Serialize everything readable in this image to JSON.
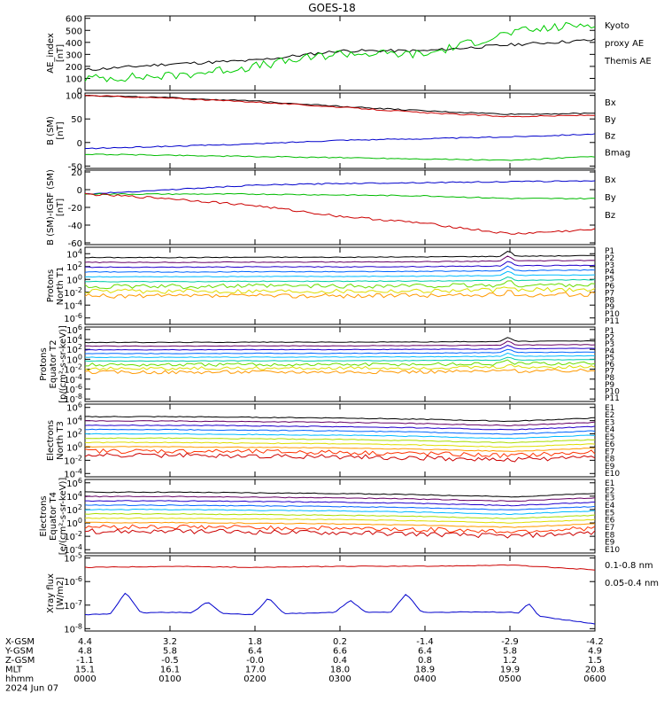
{
  "title": "GOES-18",
  "panels": [
    {
      "id": "ae",
      "ylabel": [
        "AE_index",
        "[nT]"
      ],
      "yticks": [
        {
          "v": 600,
          "label": "600"
        },
        {
          "v": 500,
          "label": "500"
        },
        {
          "v": 400,
          "label": "400"
        },
        {
          "v": 300,
          "label": "300"
        },
        {
          "v": 200,
          "label": "200"
        },
        {
          "v": 100,
          "label": "100"
        },
        {
          "v": 0,
          "label": "0"
        }
      ],
      "ylim": [
        0,
        620
      ],
      "legend": [
        {
          "text": "Kyoto",
          "color": "#00cc00"
        },
        {
          "text": "proxy AE",
          "color": "#00cc00"
        },
        {
          "text": "Themis AE",
          "color": "#000000"
        }
      ]
    },
    {
      "id": "b_sm",
      "ylabel": [
        "B (SM)",
        "[nT]"
      ],
      "yticks": [
        {
          "v": 100,
          "label": "100"
        },
        {
          "v": 50,
          "label": "50"
        },
        {
          "v": 0,
          "label": "0"
        },
        {
          "v": -50,
          "label": "-50"
        }
      ],
      "ylim": [
        -55,
        105
      ],
      "legend": [
        {
          "text": "Bx",
          "color": "#0000cc"
        },
        {
          "text": "By",
          "color": "#00bb00"
        },
        {
          "text": "Bz",
          "color": "#cc0000"
        },
        {
          "text": "Bmag",
          "color": "#000000"
        }
      ]
    },
    {
      "id": "b_igrf",
      "ylabel": [
        "B (SM)-IGRF (SM)",
        "[nT]"
      ],
      "yticks": [
        {
          "v": 20,
          "label": "20"
        },
        {
          "v": 0,
          "label": "0"
        },
        {
          "v": -20,
          "label": "-20"
        },
        {
          "v": -40,
          "label": "-40"
        },
        {
          "v": -60,
          "label": "-60"
        }
      ],
      "ylim": [
        -62,
        22
      ],
      "legend": [
        {
          "text": "Bx",
          "color": "#0000cc"
        },
        {
          "text": "By",
          "color": "#00bb00"
        },
        {
          "text": "Bz",
          "color": "#cc0000"
        }
      ]
    },
    {
      "id": "prot_n",
      "ylabel": [
        "Protons",
        "North T1"
      ],
      "yticks": [
        {
          "v": 4,
          "label": "10^4"
        },
        {
          "v": 2,
          "label": "10^2"
        },
        {
          "v": 0,
          "label": "10^0"
        },
        {
          "v": -2,
          "label": "10^-2"
        },
        {
          "v": -4,
          "label": "10^-4"
        },
        {
          "v": -6,
          "label": "10^-6"
        }
      ],
      "ylim": [
        -7,
        5
      ],
      "legend": [
        {
          "text": "P1",
          "color": "#000000"
        },
        {
          "text": "P2",
          "color": "#660066"
        },
        {
          "text": "P3",
          "color": "#2200cc"
        },
        {
          "text": "P4",
          "color": "#0066ff"
        },
        {
          "text": "P5",
          "color": "#00bbff"
        },
        {
          "text": "P6",
          "color": "#00ccaa"
        },
        {
          "text": "P7",
          "color": "#66dd00"
        },
        {
          "text": "P8",
          "color": "#dddd00"
        },
        {
          "text": "P9",
          "color": "#ff9900"
        },
        {
          "text": "P10",
          "color": "#ff3300"
        },
        {
          "text": "P11",
          "color": "#cc0000"
        }
      ]
    },
    {
      "id": "prot_e",
      "ylabel": [
        "Protons",
        "Equator T2",
        "[p/(cm²-s-sr-keV)]"
      ],
      "yticks": [
        {
          "v": 6,
          "label": "10^6"
        },
        {
          "v": 4,
          "label": "10^4"
        },
        {
          "v": 2,
          "label": "10^2"
        },
        {
          "v": 0,
          "label": "10^0"
        },
        {
          "v": -2,
          "label": "10^-2"
        },
        {
          "v": -4,
          "label": "10^-4"
        },
        {
          "v": -6,
          "label": "10^-6"
        },
        {
          "v": -8,
          "label": "10^-8"
        }
      ],
      "ylim": [
        -8.5,
        6.5
      ],
      "legend": [
        {
          "text": "P1",
          "color": "#000000"
        },
        {
          "text": "P2",
          "color": "#660066"
        },
        {
          "text": "P3",
          "color": "#2200cc"
        },
        {
          "text": "P4",
          "color": "#0066ff"
        },
        {
          "text": "P5",
          "color": "#00bbff"
        },
        {
          "text": "P6",
          "color": "#00ccaa"
        },
        {
          "text": "P7",
          "color": "#66dd00"
        },
        {
          "text": "P8",
          "color": "#dddd00"
        },
        {
          "text": "P9",
          "color": "#ff9900"
        },
        {
          "text": "P10",
          "color": "#ff3300"
        },
        {
          "text": "P11",
          "color": "#cc0000"
        }
      ]
    },
    {
      "id": "elec_n",
      "ylabel": [
        "Electrons",
        "North T3"
      ],
      "yticks": [
        {
          "v": 6,
          "label": "10^6"
        },
        {
          "v": 4,
          "label": "10^4"
        },
        {
          "v": 2,
          "label": "10^2"
        },
        {
          "v": 0,
          "label": "10^0"
        },
        {
          "v": -2,
          "label": "10^-2"
        },
        {
          "v": -4,
          "label": "10^-4"
        }
      ],
      "ylim": [
        -4.5,
        6.5
      ],
      "legend": [
        {
          "text": "E1",
          "color": "#000000"
        },
        {
          "text": "E2",
          "color": "#660066"
        },
        {
          "text": "E3",
          "color": "#2200cc"
        },
        {
          "text": "E4",
          "color": "#0066ff"
        },
        {
          "text": "E5",
          "color": "#00bbff"
        },
        {
          "text": "E6",
          "color": "#aadd00"
        },
        {
          "text": "E7",
          "color": "#dddd00"
        },
        {
          "text": "E8",
          "color": "#ff9900"
        },
        {
          "text": "E9",
          "color": "#ff3300"
        },
        {
          "text": "E10",
          "color": "#cc0000"
        }
      ]
    },
    {
      "id": "elec_e",
      "ylabel": [
        "Electrons",
        "Equator T4",
        "[e/(cm²-s-sr-keV)]"
      ],
      "yticks": [
        {
          "v": 6,
          "label": "10^6"
        },
        {
          "v": 4,
          "label": "10^4"
        },
        {
          "v": 2,
          "label": "10^2"
        },
        {
          "v": 0,
          "label": "10^0"
        },
        {
          "v": -2,
          "label": "10^-2"
        },
        {
          "v": -4,
          "label": "10^-4"
        }
      ],
      "ylim": [
        -4.5,
        6.5
      ],
      "legend": [
        {
          "text": "E1",
          "color": "#000000"
        },
        {
          "text": "E2",
          "color": "#660066"
        },
        {
          "text": "E3",
          "color": "#2200cc"
        },
        {
          "text": "E4",
          "color": "#0066ff"
        },
        {
          "text": "E5",
          "color": "#00bbff"
        },
        {
          "text": "E6",
          "color": "#aadd00"
        },
        {
          "text": "E7",
          "color": "#dddd00"
        },
        {
          "text": "E8",
          "color": "#ff9900"
        },
        {
          "text": "E9",
          "color": "#ff3300"
        },
        {
          "text": "E10",
          "color": "#cc0000"
        }
      ]
    },
    {
      "id": "xray",
      "ylabel": [
        "Xray flux",
        "[W/m2]"
      ],
      "yticks": [
        {
          "v": -5,
          "label": "10^-5"
        },
        {
          "v": -6,
          "label": "10^-6"
        },
        {
          "v": -7,
          "label": "10^-7"
        },
        {
          "v": -8,
          "label": "10^-8"
        }
      ],
      "ylim": [
        -8.1,
        -4.9
      ],
      "legend": [
        {
          "text": "0.1-0.8 nm",
          "color": "#cc0000"
        },
        {
          "text": "0.05-0.4 nm",
          "color": "#0000cc"
        }
      ]
    }
  ],
  "footer": {
    "rows": [
      {
        "label": "X-GSM",
        "values": [
          "4.4",
          "3.2",
          "1.8",
          "0.2",
          "-1.4",
          "-2.9",
          "-4.2"
        ]
      },
      {
        "label": "Y-GSM",
        "values": [
          "4.8",
          "5.8",
          "6.4",
          "6.6",
          "6.4",
          "5.8",
          "4.9"
        ]
      },
      {
        "label": "Z-GSM",
        "values": [
          "-1.1",
          "-0.5",
          "-0.0",
          "0.4",
          "0.8",
          "1.2",
          "1.5"
        ]
      },
      {
        "label": "MLT",
        "values": [
          "15.1",
          "16.1",
          "17.0",
          "18.0",
          "18.9",
          "19.9",
          "20.8"
        ]
      },
      {
        "label": "hhmm",
        "values": [
          "0000",
          "0100",
          "0200",
          "0300",
          "0400",
          "0500",
          "0600"
        ]
      }
    ],
    "date": "2024 Jun 07"
  },
  "chart_data": {
    "type": "line",
    "title": "GOES-18",
    "x": [
      "0000",
      "0100",
      "0200",
      "0300",
      "0400",
      "0500",
      "0600"
    ],
    "xlabel": "hhmm",
    "series": [
      {
        "name": "Themis AE",
        "panel": "ae",
        "values": [
          170,
          220,
          250,
          330,
          330,
          380,
          420
        ]
      },
      {
        "name": "Kyoto proxy AE",
        "panel": "ae",
        "values": [
          100,
          120,
          200,
          310,
          300,
          480,
          560
        ]
      },
      {
        "name": "Bmag",
        "panel": "b_sm",
        "values": [
          100,
          95,
          88,
          77,
          67,
          60,
          62
        ]
      },
      {
        "name": "Bx",
        "panel": "b_sm",
        "values": [
          -13,
          -8,
          -3,
          5,
          8,
          12,
          18
        ]
      },
      {
        "name": "By",
        "panel": "b_sm",
        "values": [
          -25,
          -27,
          -30,
          -32,
          -35,
          -38,
          -30
        ]
      },
      {
        "name": "Bz",
        "panel": "b_sm",
        "values": [
          100,
          94,
          86,
          75,
          63,
          55,
          58
        ]
      },
      {
        "name": "Bx",
        "panel": "b_igrf",
        "values": [
          -5,
          0,
          5,
          7,
          8,
          9,
          10
        ]
      },
      {
        "name": "By",
        "panel": "b_igrf",
        "values": [
          -5,
          -5,
          -5,
          -6,
          -7,
          -10,
          -10
        ]
      },
      {
        "name": "Bz",
        "panel": "b_igrf",
        "values": [
          -5,
          -10,
          -18,
          -30,
          -38,
          -50,
          -45
        ]
      },
      {
        "name": "0.1-0.8 nm",
        "panel": "xray",
        "values": [
          -5.4,
          -5.35,
          -5.4,
          -5.35,
          -5.35,
          -5.3,
          -5.5
        ]
      },
      {
        "name": "0.05-0.4 nm",
        "panel": "xray",
        "values": [
          -7.4,
          -7.3,
          -7.4,
          -7.3,
          -7.3,
          -7.3,
          -7.8
        ]
      }
    ],
    "log_panels": [
      "prot_n",
      "prot_e",
      "elec_n",
      "elec_e",
      "xray"
    ]
  }
}
